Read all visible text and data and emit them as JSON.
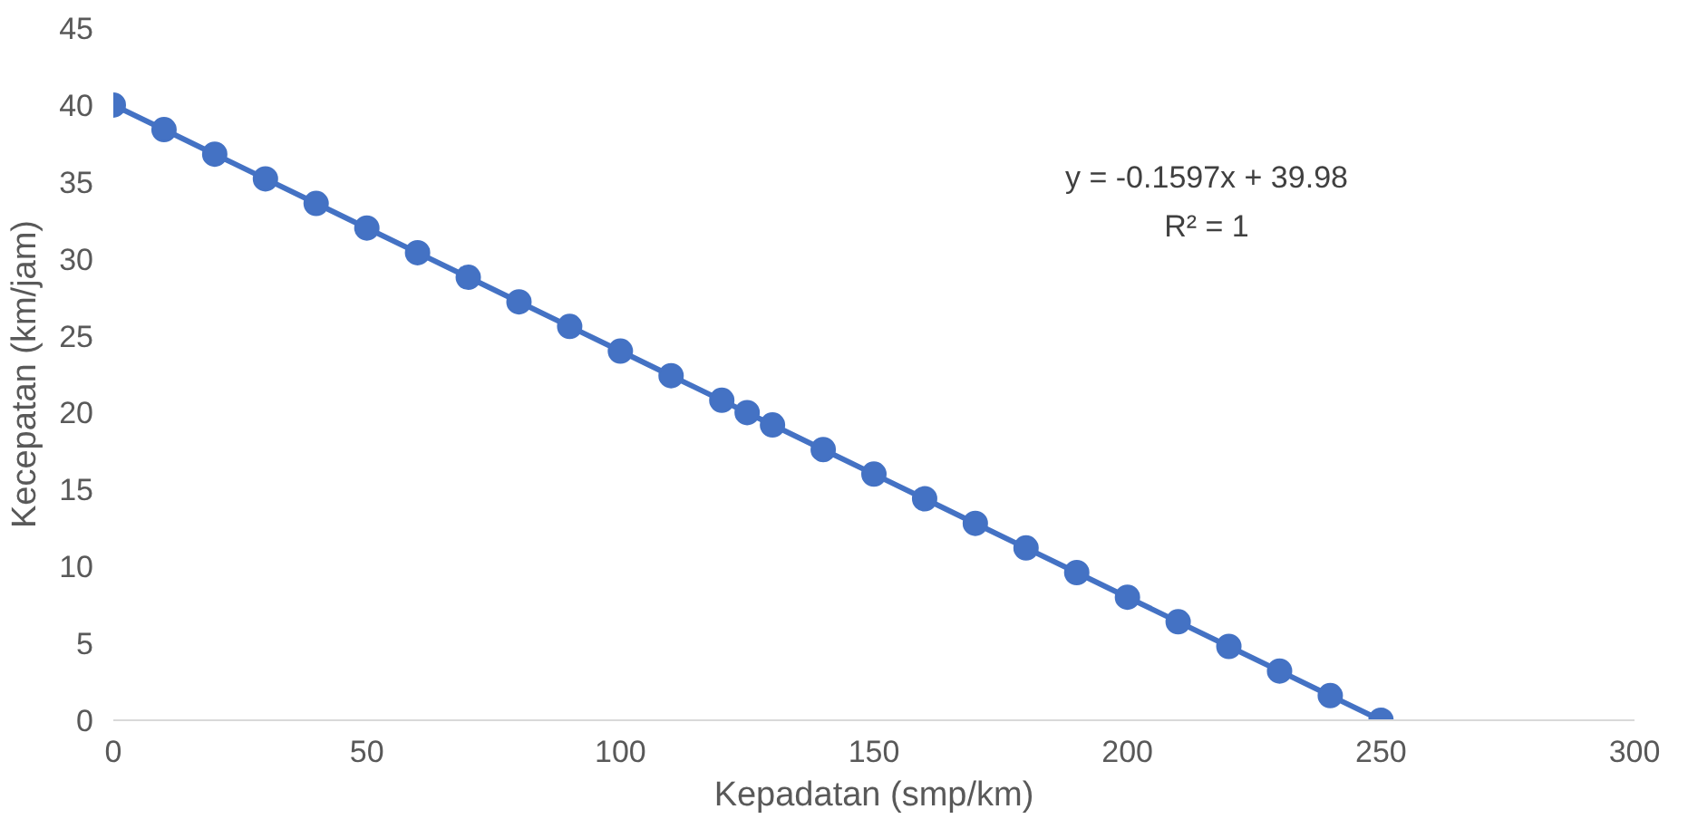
{
  "chart_data": {
    "type": "line",
    "xlabel": "Kepadatan (smp/km)",
    "ylabel": "Kecepatan (km/jam)",
    "series": [
      {
        "color": "#4472c4",
        "marker": "circle",
        "x": [
          0,
          10,
          20,
          30,
          40,
          50,
          60,
          70,
          80,
          90,
          100,
          110,
          120,
          125,
          130,
          140,
          150,
          160,
          170,
          180,
          190,
          200,
          210,
          220,
          230,
          240,
          250
        ],
        "values": [
          40,
          38.4,
          36.8,
          35.2,
          33.6,
          32,
          30.4,
          28.8,
          27.2,
          25.6,
          24,
          22.4,
          20.8,
          20,
          19.2,
          17.6,
          16,
          14.4,
          12.8,
          11.2,
          9.6,
          8,
          6.4,
          4.8,
          3.2,
          1.6,
          0
        ]
      }
    ],
    "annotations": [
      "y = -0.1597x + 39.98",
      "R² = 1"
    ],
    "xlim": [
      0,
      300
    ],
    "xticks": [
      0,
      50,
      100,
      150,
      200,
      250,
      300
    ],
    "ylim": [
      0,
      45
    ],
    "yticks": [
      0,
      5,
      10,
      15,
      20,
      25,
      30,
      35,
      40,
      45
    ],
    "grid": false
  }
}
